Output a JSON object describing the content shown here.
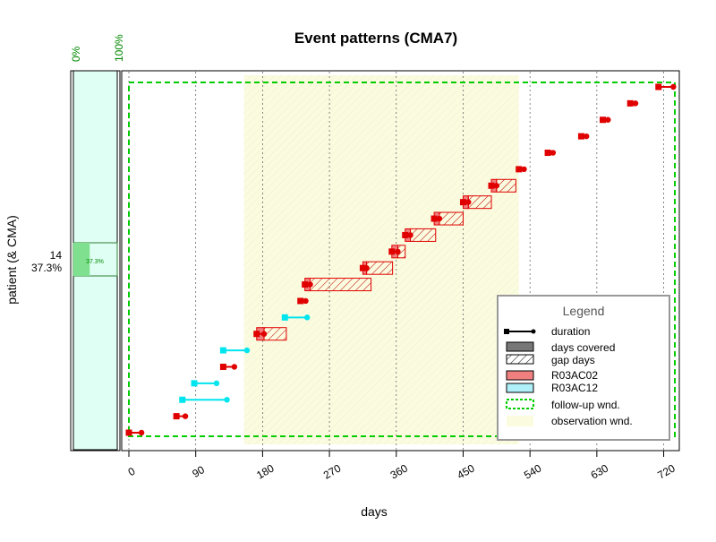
{
  "chart_data": {
    "type": "event-pattern",
    "title": "Event patterns (CMA7)",
    "xlabel": "days",
    "ylabel": "patient (& CMA)",
    "xlim": [
      0,
      735
    ],
    "xticks": [
      0,
      90,
      180,
      270,
      360,
      450,
      540,
      630,
      720
    ],
    "xtick_labels": [
      "0",
      "90",
      "180",
      "270",
      "360",
      "450",
      "540",
      "630",
      "720"
    ],
    "grid": true,
    "cma_panel": {
      "top_labels": [
        "0%",
        "100%"
      ],
      "patient": "14",
      "cma_percent_label": "37.3%",
      "bar_label": "37.3%",
      "cma_value": 0.373
    },
    "follow_up_window": [
      0,
      735
    ],
    "observation_window": [
      155,
      525
    ],
    "events": [
      {
        "start": 0,
        "duration": 17,
        "medication": "R03AC02",
        "gap": 0
      },
      {
        "start": 64,
        "duration": 12,
        "medication": "R03AC02",
        "gap": 0
      },
      {
        "start": 72,
        "duration": 60,
        "medication": "R03AC12",
        "gap": 0
      },
      {
        "start": 88,
        "duration": 30,
        "medication": "R03AC12",
        "gap": 0
      },
      {
        "start": 127,
        "duration": 15,
        "medication": "R03AC02",
        "gap": 0
      },
      {
        "start": 127,
        "duration": 32,
        "medication": "R03AC12",
        "gap": 0
      },
      {
        "start": 172,
        "duration": 10,
        "medication": "R03AC02",
        "gap": 30
      },
      {
        "start": 210,
        "duration": 30,
        "medication": "R03AC12",
        "gap": 0
      },
      {
        "start": 231,
        "duration": 7,
        "medication": "R03AC02",
        "gap": 0
      },
      {
        "start": 237,
        "duration": 7,
        "medication": "R03AC02",
        "gap": 82
      },
      {
        "start": 315,
        "duration": 5,
        "medication": "R03AC02",
        "gap": 35
      },
      {
        "start": 354,
        "duration": 8,
        "medication": "R03AC02",
        "gap": 10
      },
      {
        "start": 372,
        "duration": 7,
        "medication": "R03AC02",
        "gap": 34
      },
      {
        "start": 411,
        "duration": 7,
        "medication": "R03AC02",
        "gap": 32
      },
      {
        "start": 450,
        "duration": 7,
        "medication": "R03AC02",
        "gap": 31
      },
      {
        "start": 488,
        "duration": 7,
        "medication": "R03AC02",
        "gap": 26
      },
      {
        "start": 525,
        "duration": 7,
        "medication": "R03AC02",
        "gap": 0
      },
      {
        "start": 564,
        "duration": 7,
        "medication": "R03AC02",
        "gap": 0
      },
      {
        "start": 609,
        "duration": 7,
        "medication": "R03AC02",
        "gap": 0
      },
      {
        "start": 638,
        "duration": 7,
        "medication": "R03AC02",
        "gap": 0
      },
      {
        "start": 675,
        "duration": 7,
        "medication": "R03AC02",
        "gap": 0
      },
      {
        "start": 713,
        "duration": 20,
        "medication": "R03AC02",
        "gap": 0
      }
    ],
    "legend": {
      "title": "Legend",
      "placement": "bottom-right",
      "items": [
        "duration",
        "days covered",
        "gap days",
        "R03AC02",
        "R03AC12",
        "follow-up wnd.",
        "observation wnd."
      ]
    },
    "colors": {
      "R03AC02": "#e00000",
      "R03AC12": "#00e5ee",
      "R03AC02_fill": "#f08080",
      "R03AC12_fill": "#b0f0f8",
      "follow_up": "#00cc00",
      "observation": "#fbfbdf",
      "cma_panel_bg": "#e0fff4",
      "cma_bar": "#7fe08f",
      "cma_text": "#008800",
      "grid": "#555555",
      "legend_border": "#999999"
    }
  }
}
